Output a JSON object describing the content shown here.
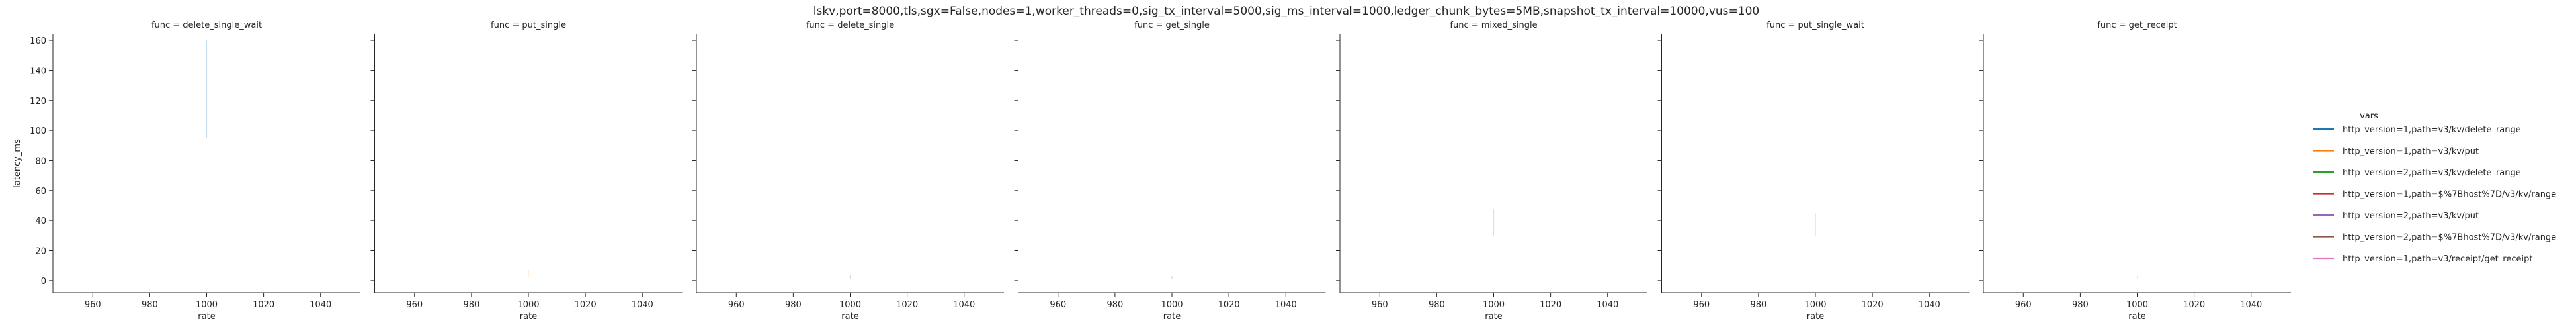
{
  "figure_title": "lskv,port=8000,tls,sgx=False,nodes=1,worker_threads=0,sig_tx_interval=5000,sig_ms_interval=1000,ledger_chunk_bytes=5MB,snapshot_tx_interval=10000,vus=100",
  "legend": {
    "title": "vars",
    "placement": "right",
    "entries": [
      {
        "label": "http_version=1,path=v3/kv/delete_range",
        "color": "#1f77b4"
      },
      {
        "label": "http_version=1,path=v3/kv/put",
        "color": "#ff7f0e"
      },
      {
        "label": "http_version=2,path=v3/kv/delete_range",
        "color": "#2ca02c"
      },
      {
        "label": "http_version=1,path=$%7Bhost%7D/v3/kv/range",
        "color": "#d62728"
      },
      {
        "label": "http_version=2,path=v3/kv/put",
        "color": "#9467bd"
      },
      {
        "label": "http_version=2,path=$%7Bhost%7D/v3/kv/range",
        "color": "#8c564b"
      },
      {
        "label": "http_version=1,path=v3/receipt/get_receipt",
        "color": "#e377c2"
      }
    ]
  },
  "chart_data": {
    "type": "line",
    "xlabel": "rate",
    "ylabel": "latency_ms",
    "xlim": [
      946,
      1054
    ],
    "ylim": [
      -8,
      164
    ],
    "xticks": [
      960,
      980,
      1000,
      1020,
      1040
    ],
    "yticks": [
      0,
      20,
      40,
      60,
      80,
      100,
      120,
      140,
      160
    ],
    "grid": false,
    "facets": [
      {
        "title": "func = delete_single_wait",
        "series": [
          {
            "color": "#1f77b4",
            "x": [
              1000,
              1000
            ],
            "y": [
              95,
              160
            ]
          }
        ]
      },
      {
        "title": "func = put_single",
        "series": [
          {
            "color": "#ff7f0e",
            "x": [
              1000,
              1000
            ],
            "y": [
              2,
              7
            ]
          }
        ]
      },
      {
        "title": "func = delete_single",
        "series": [
          {
            "color": "#2ca02c",
            "x": [
              1000,
              1000
            ],
            "y": [
              1,
              4
            ]
          }
        ]
      },
      {
        "title": "func = get_single",
        "series": [
          {
            "color": "#d62728",
            "x": [
              1000,
              1000
            ],
            "y": [
              1,
              3
            ]
          }
        ]
      },
      {
        "title": "func = mixed_single",
        "series": [
          {
            "color": "#9467bd",
            "x": [
              1000,
              1000
            ],
            "y": [
              30,
              48
            ]
          }
        ]
      },
      {
        "title": "func = put_single_wait",
        "series": [
          {
            "color": "#8c564b",
            "x": [
              1000,
              1000
            ],
            "y": [
              30,
              45
            ]
          }
        ]
      },
      {
        "title": "func = get_receipt",
        "series": [
          {
            "color": "#e377c2",
            "x": [
              1000,
              1000
            ],
            "y": [
              1,
              3
            ]
          }
        ]
      }
    ]
  }
}
